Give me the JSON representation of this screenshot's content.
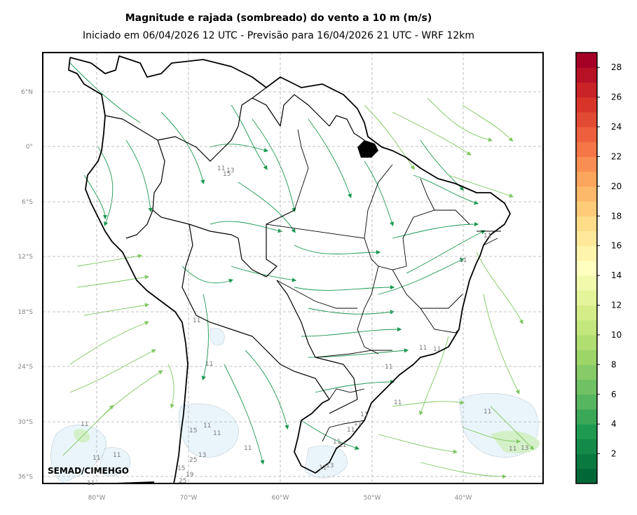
{
  "title": "Magnitude e rajada (sombreado) do vento a 10 m (m/s)",
  "subtitle": "Iniciado em 06/04/2026 12 UTC - Previsão para 16/04/2026 21 UTC - WRF 12km",
  "credit": "SEMAD/CIMEHGO",
  "lat_labels": [
    "6°N",
    "0°",
    "6°S",
    "12°S",
    "18°S",
    "24°S",
    "30°S",
    "36°S"
  ],
  "lon_labels": [
    "80°W",
    "70°W",
    "60°W",
    "50°W",
    "40°W"
  ],
  "colorbar": {
    "ticks": [
      "2",
      "4",
      "6",
      "8",
      "10",
      "12",
      "14",
      "16",
      "18",
      "20",
      "22",
      "24",
      "26",
      "28"
    ],
    "colors": [
      "#006837",
      "#1a9850",
      "#66bd63",
      "#a6d96a",
      "#d9ef8b",
      "#ffffbf",
      "#fee08b",
      "#fdae61",
      "#f46d43",
      "#d73027",
      "#a50026"
    ]
  },
  "gust_labels": [
    "11",
    "13",
    "15",
    "11",
    "11",
    "11",
    "11",
    "11",
    "11",
    "11",
    "11",
    "11",
    "11",
    "11",
    "11",
    "13",
    "11",
    "11",
    "11",
    "15",
    "11",
    "11",
    "25",
    "15",
    "19",
    "25",
    "11",
    "11",
    "13",
    "11",
    "11",
    "11",
    "11",
    "13"
  ]
}
